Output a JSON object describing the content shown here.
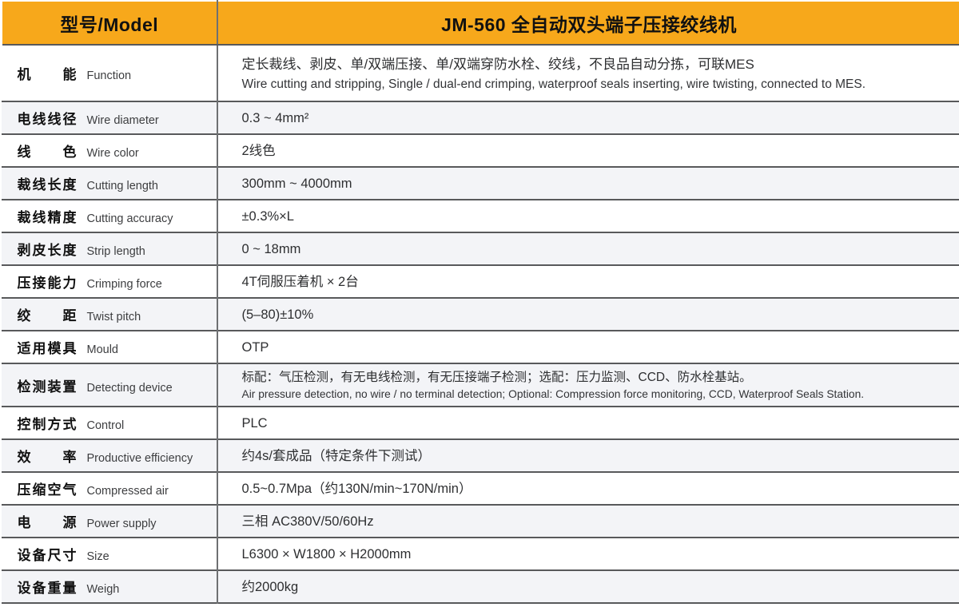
{
  "colors": {
    "accent": "#F7A81B",
    "alt_row": "#F3F4F7",
    "line": "#58595B",
    "divider": "#6E7072"
  },
  "header": {
    "model_label": "型号/Model",
    "model_value": "JM-560 全自动双头端子压接绞线机"
  },
  "rows": [
    {
      "zh": "机能",
      "en": "Function",
      "value": "定长裁线、剥皮、单/双端压接、单/双端穿防水栓、绞线，不良品自动分拣，可联MES",
      "value2": "Wire cutting and stripping, Single / dual-end crimping, waterproof seals inserting, wire twisting,  connected to MES."
    },
    {
      "zh": "电线线径",
      "en": "Wire diameter",
      "value": "0.3 ~ 4mm²"
    },
    {
      "zh": "线色",
      "en": "Wire color",
      "value": "2线色"
    },
    {
      "zh": "裁线长度",
      "en": "Cutting length",
      "value": "300mm ~ 4000mm"
    },
    {
      "zh": "裁线精度",
      "en": "Cutting accuracy",
      "value": "±0.3%×L"
    },
    {
      "zh": "剥皮长度",
      "en": "Strip length",
      "value": "0 ~ 18mm"
    },
    {
      "zh": "压接能力",
      "en": "Crimping force",
      "value": "4T伺服压着机 × 2台"
    },
    {
      "zh": "绞距",
      "en": "Twist pitch",
      "value": "(5–80)±10%"
    },
    {
      "zh": "适用模具",
      "en": "Mould",
      "value": "OTP"
    },
    {
      "zh": "检测装置",
      "en": "Detecting device",
      "value": "标配：气压检测，有无电线检测，有无压接端子检测；选配：压力监测、CCD、防水栓基站。",
      "value2": "Air pressure detection, no wire / no terminal detection; Optional: Compression force monitoring, CCD, Waterproof Seals Station."
    },
    {
      "zh": "控制方式",
      "en": "Control",
      "value": "PLC"
    },
    {
      "zh": "效率",
      "en": "Productive efficiency",
      "value": "约4s/套成品（特定条件下测试）"
    },
    {
      "zh": "压缩空气",
      "en": "Compressed air",
      "value": "0.5~0.7Mpa（约130N/min~170N/min）"
    },
    {
      "zh": "电源",
      "en": "Power supply",
      "value": "三相 AC380V/50/60Hz"
    },
    {
      "zh": "设备尺寸",
      "en": "Size",
      "value": "L6300 × W1800 × H2000mm"
    },
    {
      "zh": "设备重量",
      "en": "Weigh",
      "value": "约2000kg"
    }
  ]
}
